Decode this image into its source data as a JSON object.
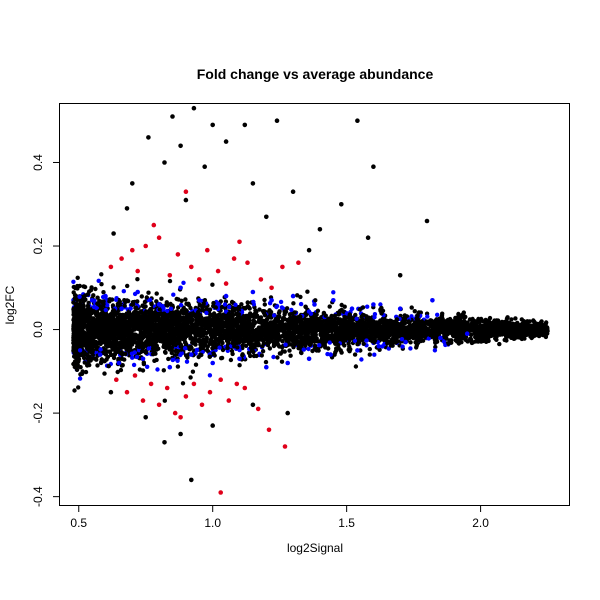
{
  "chart_data": {
    "type": "scatter",
    "title": "Fold change vs average abundance",
    "xlabel": "log2Signal",
    "ylabel": "log2FC",
    "xlim": [
      0.43,
      2.33
    ],
    "ylim": [
      -0.42,
      0.54
    ],
    "x_ticks": [
      0.5,
      1.0,
      1.5,
      2.0
    ],
    "x_tick_labels": [
      "0.5",
      "1.0",
      "1.5",
      "2.0"
    ],
    "y_ticks": [
      -0.4,
      -0.2,
      0.0,
      0.2,
      0.4
    ],
    "y_tick_labels": [
      "-0.4",
      "-0.2",
      "0.0",
      "0.2",
      "0.4"
    ],
    "grid": false,
    "legend": "none",
    "colors": {
      "black": "#000000",
      "blue": "#0000ff",
      "red": "#e0001a"
    },
    "groups": [
      {
        "color": "red",
        "points": [
          [
            0.62,
            0.15
          ],
          [
            0.66,
            0.17
          ],
          [
            0.7,
            0.19
          ],
          [
            0.72,
            0.14
          ],
          [
            0.75,
            0.2
          ],
          [
            0.78,
            0.25
          ],
          [
            0.8,
            0.22
          ],
          [
            0.84,
            0.13
          ],
          [
            0.87,
            0.18
          ],
          [
            0.9,
            0.33
          ],
          [
            0.92,
            0.15
          ],
          [
            0.95,
            0.12
          ],
          [
            0.98,
            0.19
          ],
          [
            1.02,
            0.14
          ],
          [
            1.05,
            0.11
          ],
          [
            1.08,
            0.17
          ],
          [
            1.1,
            0.21
          ],
          [
            1.13,
            0.16
          ],
          [
            1.18,
            0.12
          ],
          [
            1.22,
            0.1
          ],
          [
            1.26,
            0.15
          ],
          [
            1.32,
            0.16
          ],
          [
            0.64,
            -0.12
          ],
          [
            0.68,
            -0.15
          ],
          [
            0.71,
            -0.11
          ],
          [
            0.74,
            -0.17
          ],
          [
            0.77,
            -0.13
          ],
          [
            0.8,
            -0.18
          ],
          [
            0.83,
            -0.14
          ],
          [
            0.86,
            -0.2
          ],
          [
            0.88,
            -0.21
          ],
          [
            0.9,
            -0.16
          ],
          [
            0.93,
            -0.13
          ],
          [
            0.96,
            -0.18
          ],
          [
            0.99,
            -0.15
          ],
          [
            1.03,
            -0.12
          ],
          [
            1.06,
            -0.17
          ],
          [
            1.09,
            -0.13
          ],
          [
            1.12,
            -0.14
          ],
          [
            1.17,
            -0.19
          ],
          [
            1.21,
            -0.24
          ],
          [
            1.27,
            -0.28
          ],
          [
            1.03,
            -0.39
          ]
        ]
      },
      {
        "color": "blue",
        "points": [
          [
            0.55,
            0.07
          ],
          [
            0.6,
            0.08
          ],
          [
            0.66,
            0.05
          ],
          [
            0.72,
            0.09
          ],
          [
            0.8,
            0.06
          ],
          [
            0.88,
            0.1
          ],
          [
            0.95,
            0.07
          ],
          [
            1.05,
            0.08
          ],
          [
            1.15,
            0.09
          ],
          [
            1.22,
            0.07
          ],
          [
            1.3,
            0.08
          ],
          [
            1.38,
            0.06
          ],
          [
            1.45,
            0.07
          ],
          [
            1.52,
            0.05
          ],
          [
            1.6,
            0.06
          ],
          [
            1.7,
            0.05
          ],
          [
            1.82,
            0.07
          ],
          [
            0.58,
            -0.06
          ],
          [
            0.65,
            -0.08
          ],
          [
            0.74,
            -0.07
          ],
          [
            0.84,
            -0.09
          ],
          [
            0.92,
            -0.06
          ],
          [
            1.0,
            -0.08
          ],
          [
            1.1,
            -0.07
          ],
          [
            1.2,
            -0.09
          ],
          [
            1.28,
            -0.08
          ],
          [
            1.36,
            -0.07
          ],
          [
            1.44,
            -0.06
          ],
          [
            1.54,
            -0.05
          ],
          [
            1.62,
            -0.04
          ],
          [
            1.72,
            -0.03
          ],
          [
            1.85,
            -0.02
          ],
          [
            1.95,
            -0.01
          ]
        ]
      },
      {
        "color": "black",
        "points": [
          [
            0.93,
            0.53
          ],
          [
            0.85,
            0.51
          ],
          [
            1.0,
            0.49
          ],
          [
            1.12,
            0.49
          ],
          [
            1.24,
            0.5
          ],
          [
            1.54,
            0.5
          ],
          [
            0.76,
            0.46
          ],
          [
            0.88,
            0.44
          ],
          [
            1.05,
            0.45
          ],
          [
            0.82,
            0.4
          ],
          [
            0.97,
            0.39
          ],
          [
            1.6,
            0.39
          ],
          [
            0.7,
            0.35
          ],
          [
            1.15,
            0.35
          ],
          [
            1.3,
            0.33
          ],
          [
            1.48,
            0.3
          ],
          [
            1.8,
            0.26
          ],
          [
            0.68,
            0.29
          ],
          [
            0.9,
            0.31
          ],
          [
            1.2,
            0.27
          ],
          [
            1.4,
            0.24
          ],
          [
            1.58,
            0.22
          ],
          [
            1.7,
            0.13
          ],
          [
            0.63,
            0.23
          ],
          [
            1.36,
            0.19
          ],
          [
            0.92,
            -0.36
          ],
          [
            0.82,
            -0.27
          ],
          [
            0.88,
            -0.25
          ],
          [
            1.0,
            -0.23
          ],
          [
            1.28,
            -0.2
          ],
          [
            0.75,
            -0.21
          ],
          [
            0.62,
            -0.15
          ],
          [
            1.15,
            -0.18
          ]
        ]
      }
    ],
    "bulk_band": "dense black point cloud centered at 0, spanning log2Signal 0.48 to 2.25 with spread narrowing toward higher signal"
  }
}
